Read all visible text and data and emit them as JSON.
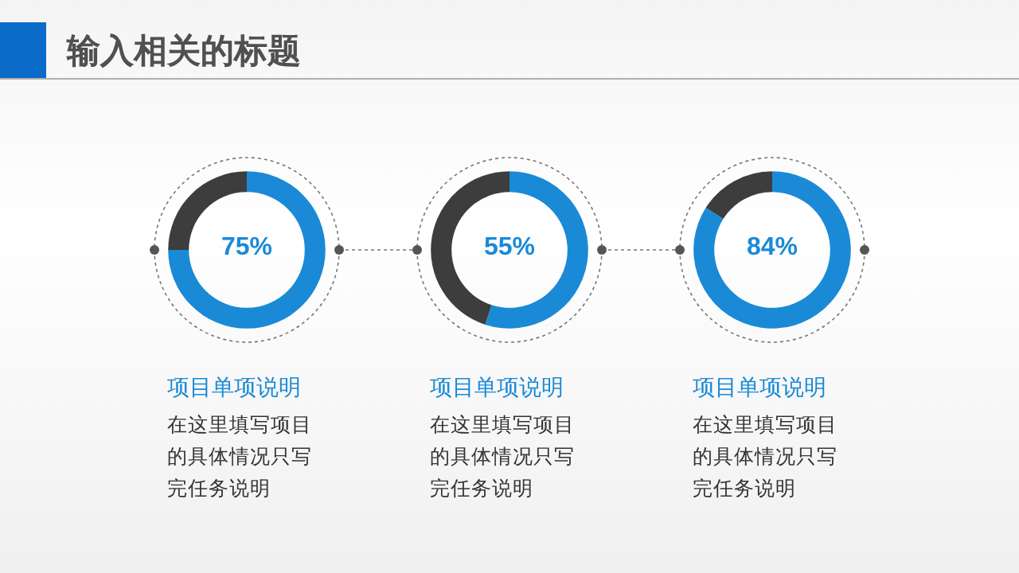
{
  "chart_data": [
    {
      "type": "donut",
      "title": "输入相关的标题",
      "subtitle": "项目单项说明",
      "categories": [
        null,
        null
      ],
      "values": [
        75,
        25
      ],
      "colors": [
        "#1a8ad6",
        "#3d3d3d"
      ],
      "annotations": [
        "75%",
        "在这里填写项目的具体情况只写完任务说明"
      ]
    },
    {
      "type": "donut",
      "subtitle": "项目单项说明",
      "categories": [
        null,
        null
      ],
      "values": [
        55,
        45
      ],
      "colors": [
        "#1a8ad6",
        "#3d3d3d"
      ],
      "annotations": [
        "55%",
        "在这里填写项目的具体情况只写完任务说明"
      ]
    },
    {
      "type": "donut",
      "subtitle": "项目单项说明",
      "categories": [
        null,
        null
      ],
      "values": [
        84,
        16
      ],
      "colors": [
        "#1a8ad6",
        "#3d3d3d"
      ],
      "annotations": [
        "84%",
        "在这里填写项目的具体情况只写完任务说明"
      ]
    }
  ]
}
